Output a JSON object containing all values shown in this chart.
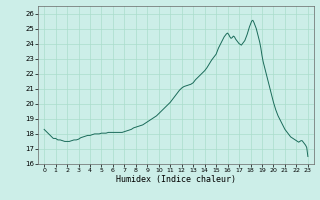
{
  "title": "",
  "xlabel": "Humidex (Indice chaleur)",
  "bg_color": "#cceee8",
  "grid_color": "#aaddcc",
  "line_color": "#1a6b5a",
  "xlim": [
    -0.5,
    23.5
  ],
  "ylim": [
    16,
    26.5
  ],
  "yticks": [
    16,
    17,
    18,
    19,
    20,
    21,
    22,
    23,
    24,
    25,
    26
  ],
  "xticks": [
    0,
    1,
    2,
    3,
    4,
    5,
    6,
    7,
    8,
    9,
    10,
    11,
    12,
    13,
    14,
    15,
    16,
    17,
    18,
    19,
    20,
    21,
    22,
    23
  ],
  "x": [
    0,
    0.2,
    0.4,
    0.6,
    0.8,
    1.0,
    1.2,
    1.4,
    1.6,
    1.8,
    2.0,
    2.2,
    2.4,
    2.6,
    2.8,
    3.0,
    3.2,
    3.4,
    3.6,
    3.8,
    4.0,
    4.2,
    4.4,
    4.6,
    4.8,
    5.0,
    5.2,
    5.4,
    5.6,
    5.8,
    6.0,
    6.2,
    6.4,
    6.6,
    6.8,
    7.0,
    7.2,
    7.4,
    7.6,
    7.8,
    8.0,
    8.2,
    8.4,
    8.6,
    8.8,
    9.0,
    9.2,
    9.4,
    9.6,
    9.8,
    10.0,
    10.2,
    10.4,
    10.6,
    10.8,
    11.0,
    11.2,
    11.4,
    11.6,
    11.8,
    12.0,
    12.2,
    12.4,
    12.6,
    12.8,
    13.0,
    13.2,
    13.4,
    13.6,
    13.8,
    14.0,
    14.2,
    14.4,
    14.6,
    14.8,
    15.0,
    15.1,
    15.2,
    15.3,
    15.4,
    15.5,
    15.6,
    15.7,
    15.8,
    15.9,
    16.0,
    16.1,
    16.2,
    16.3,
    16.4,
    16.5,
    16.6,
    16.7,
    16.8,
    16.9,
    17.0,
    17.1,
    17.2,
    17.3,
    17.4,
    17.5,
    17.6,
    17.7,
    17.8,
    17.9,
    18.0,
    18.1,
    18.2,
    18.3,
    18.4,
    18.5,
    18.6,
    18.7,
    18.8,
    18.9,
    19.0,
    19.1,
    19.2,
    19.3,
    19.4,
    19.5,
    19.6,
    19.7,
    19.8,
    19.9,
    20.0,
    20.1,
    20.2,
    20.3,
    20.4,
    20.5,
    20.6,
    20.7,
    20.8,
    20.9,
    21.0,
    21.1,
    21.2,
    21.3,
    21.4,
    21.5,
    21.6,
    21.7,
    21.8,
    21.9,
    22.0,
    22.1,
    22.2,
    22.3,
    22.4,
    22.5,
    22.6,
    22.7,
    22.8,
    22.9,
    23.0
  ],
  "y": [
    18.3,
    18.15,
    18.0,
    17.85,
    17.7,
    17.7,
    17.6,
    17.6,
    17.55,
    17.5,
    17.5,
    17.5,
    17.55,
    17.6,
    17.6,
    17.65,
    17.75,
    17.8,
    17.85,
    17.9,
    17.9,
    17.95,
    18.0,
    18.0,
    18.0,
    18.05,
    18.05,
    18.05,
    18.1,
    18.1,
    18.1,
    18.1,
    18.1,
    18.1,
    18.1,
    18.15,
    18.2,
    18.25,
    18.3,
    18.4,
    18.45,
    18.5,
    18.55,
    18.6,
    18.7,
    18.8,
    18.9,
    19.0,
    19.1,
    19.2,
    19.35,
    19.5,
    19.65,
    19.8,
    19.95,
    20.1,
    20.3,
    20.5,
    20.7,
    20.9,
    21.05,
    21.15,
    21.2,
    21.25,
    21.3,
    21.4,
    21.6,
    21.75,
    21.9,
    22.05,
    22.2,
    22.4,
    22.65,
    22.9,
    23.1,
    23.3,
    23.5,
    23.7,
    23.85,
    24.0,
    24.15,
    24.3,
    24.45,
    24.55,
    24.65,
    24.7,
    24.6,
    24.45,
    24.35,
    24.4,
    24.5,
    24.45,
    24.3,
    24.2,
    24.1,
    24.0,
    23.95,
    23.9,
    24.0,
    24.1,
    24.2,
    24.4,
    24.6,
    24.85,
    25.1,
    25.3,
    25.5,
    25.55,
    25.4,
    25.2,
    25.0,
    24.7,
    24.4,
    24.1,
    23.7,
    23.2,
    22.8,
    22.5,
    22.2,
    21.9,
    21.6,
    21.3,
    21.0,
    20.7,
    20.4,
    20.1,
    19.85,
    19.6,
    19.4,
    19.2,
    19.05,
    18.9,
    18.75,
    18.6,
    18.45,
    18.3,
    18.2,
    18.1,
    18.0,
    17.9,
    17.8,
    17.75,
    17.7,
    17.65,
    17.6,
    17.55,
    17.5,
    17.45,
    17.5,
    17.55,
    17.55,
    17.45,
    17.35,
    17.25,
    17.1,
    16.5
  ]
}
